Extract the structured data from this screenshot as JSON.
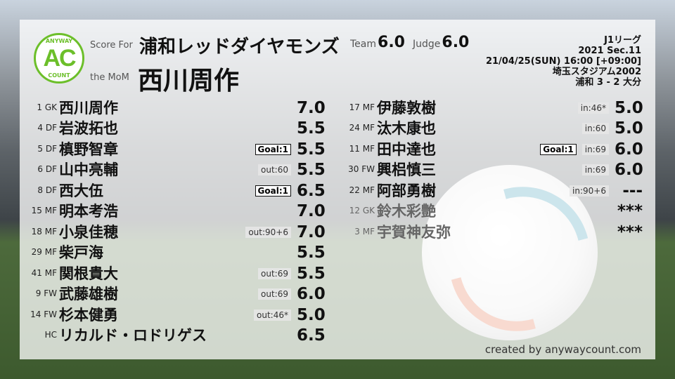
{
  "header": {
    "score_for_label": "Score For",
    "team": "浦和レッドダイヤモンズ",
    "mom_label": "the MoM",
    "mom": "西川周作",
    "team_label": "Team",
    "team_score": "6.0",
    "judge_label": "Judge",
    "judge_score": "6.0",
    "logo": {
      "top": "ANYWAY",
      "center": "AC",
      "bottom": "COUNT",
      "color": "#6cbf2a"
    }
  },
  "match": {
    "league": "J1リーグ",
    "section": "2021 Sec.11",
    "datetime": "21/04/25(SUN) 16:00 [+09:00]",
    "stadium": "埼玉スタジアム2002",
    "result": "浦和 3 - 2 大分"
  },
  "left_players": [
    {
      "pos": "1 GK",
      "name": "西川周作",
      "goal": "",
      "sub": "",
      "score": "7.0"
    },
    {
      "pos": "4 DF",
      "name": "岩波拓也",
      "goal": "",
      "sub": "",
      "score": "5.5"
    },
    {
      "pos": "5 DF",
      "name": "槙野智章",
      "goal": "Goal:1",
      "sub": "",
      "score": "5.5"
    },
    {
      "pos": "6 DF",
      "name": "山中亮輔",
      "goal": "",
      "sub": "out:60",
      "score": "5.5"
    },
    {
      "pos": "8 DF",
      "name": "西大伍",
      "goal": "Goal:1",
      "sub": "",
      "score": "6.5"
    },
    {
      "pos": "15 MF",
      "name": "明本考浩",
      "goal": "",
      "sub": "",
      "score": "7.0"
    },
    {
      "pos": "18 MF",
      "name": "小泉佳穂",
      "goal": "",
      "sub": "out:90+6",
      "score": "7.0"
    },
    {
      "pos": "29 MF",
      "name": "柴戸海",
      "goal": "",
      "sub": "",
      "score": "5.5"
    },
    {
      "pos": "41 MF",
      "name": "関根貴大",
      "goal": "",
      "sub": "out:69",
      "score": "5.5"
    },
    {
      "pos": "9 FW",
      "name": "武藤雄樹",
      "goal": "",
      "sub": "out:69",
      "score": "6.0"
    },
    {
      "pos": "14 FW",
      "name": "杉本健勇",
      "goal": "",
      "sub": "out:46*",
      "score": "5.0"
    },
    {
      "pos": "HC",
      "name": "リカルド・ロドリゲス",
      "goal": "",
      "sub": "",
      "score": "6.5"
    }
  ],
  "right_players": [
    {
      "pos": "17 MF",
      "name": "伊藤敦樹",
      "goal": "",
      "sub": "in:46*",
      "score": "5.0"
    },
    {
      "pos": "24 MF",
      "name": "汰木康也",
      "goal": "",
      "sub": "in:60",
      "score": "5.0"
    },
    {
      "pos": "11 MF",
      "name": "田中達也",
      "goal": "Goal:1",
      "sub": "in:69",
      "score": "6.0"
    },
    {
      "pos": "30 FW",
      "name": "興梠慎三",
      "goal": "",
      "sub": "in:69",
      "score": "6.0"
    },
    {
      "pos": "22 MF",
      "name": "阿部勇樹",
      "goal": "",
      "sub": "in:90+6",
      "score": "---"
    },
    {
      "pos": "12 GK",
      "name": "鈴木彩艶",
      "goal": "",
      "sub": "",
      "score": "***",
      "bench": true
    },
    {
      "pos": "3 MF",
      "name": "宇賀神友弥",
      "goal": "",
      "sub": "",
      "score": "***",
      "bench": true
    }
  ],
  "footer": {
    "credit": "created by anywaycount.com"
  }
}
